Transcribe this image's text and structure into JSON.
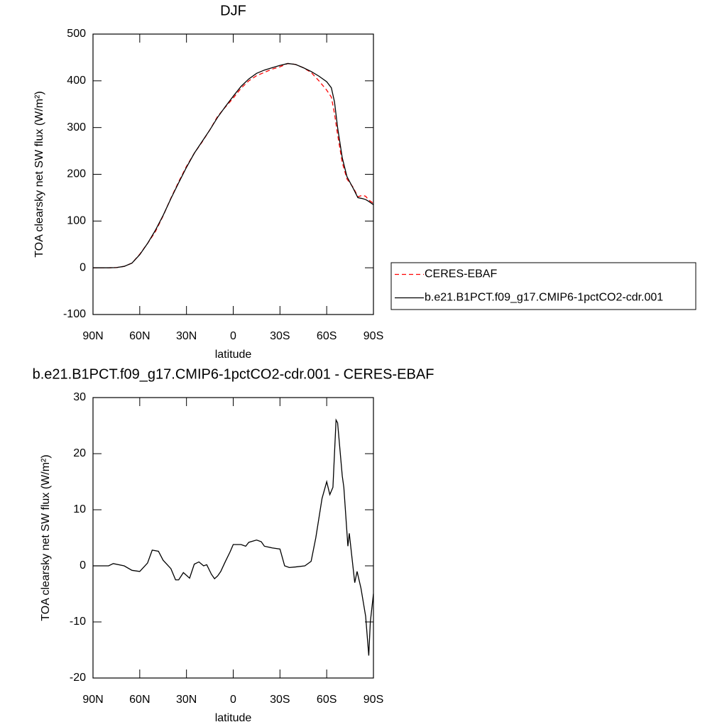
{
  "chart_data": [
    {
      "type": "line",
      "title": "DJF",
      "x_label": "latitude",
      "y_label": "TOA clearsky net SW flux (W/m²)",
      "x": [
        90,
        80,
        75,
        70,
        65,
        60,
        55,
        50,
        45,
        40,
        35,
        30,
        25,
        20,
        15,
        10,
        5,
        0,
        -5,
        -10,
        -15,
        -20,
        -25,
        -30,
        -35,
        -40,
        -45,
        -50,
        -55,
        -60,
        -63,
        -65,
        -67,
        -70,
        -73,
        -77,
        -80,
        -83,
        -85,
        -87,
        -90
      ],
      "series": [
        {
          "name": "CERES-EBAF",
          "color": "#ff0000",
          "style": "dashed",
          "values": [
            0,
            0,
            0.5,
            3,
            10,
            29,
            52,
            77,
            111,
            149,
            184,
            217,
            245,
            269,
            295,
            324,
            344,
            363,
            384,
            400,
            411,
            418,
            425,
            430,
            437,
            435,
            428,
            418,
            400,
            380,
            365,
            330,
            285,
            225,
            190,
            172,
            152,
            155,
            153,
            145,
            138
          ]
        },
        {
          "name": "b.e21.B1PCT.f09_g17.CMIP6-1pctCO2-cdr.001",
          "color": "#000000",
          "style": "solid",
          "values": [
            0,
            0,
            0.5,
            3,
            10,
            28,
            52,
            80,
            112,
            148,
            182,
            215,
            245,
            270,
            295,
            322,
            345,
            367,
            388,
            404,
            416,
            423,
            428,
            433,
            437,
            435,
            428,
            420,
            410,
            398,
            385,
            355,
            300,
            235,
            195,
            170,
            150,
            148,
            146,
            142,
            135
          ]
        }
      ],
      "xlim": [
        90,
        -90
      ],
      "ylim": [
        -100,
        500
      ],
      "xticks": [
        {
          "value": 90,
          "label": "90N"
        },
        {
          "value": 60,
          "label": "60N"
        },
        {
          "value": 30,
          "label": "30N"
        },
        0,
        {
          "value": -30,
          "label": "30S"
        },
        {
          "value": -60,
          "label": "60S"
        },
        {
          "value": -90,
          "label": "90S"
        }
      ],
      "yticks": [
        -100,
        0,
        100,
        200,
        300,
        400,
        500
      ],
      "legend": "right"
    },
    {
      "type": "line",
      "title": "b.e21.B1PCT.f09_g17.CMIP6-1pctCO2-cdr.001 - CERES-EBAF",
      "x_label": "latitude",
      "y_label": "TOA clearsky net SW flux (W/m²)",
      "x": [
        90,
        80,
        77,
        70,
        65,
        60,
        55,
        52,
        48,
        45,
        40,
        37,
        35,
        32,
        28,
        25,
        22,
        19,
        17,
        14,
        12,
        10,
        8,
        5,
        2,
        0,
        -5,
        -8,
        -10,
        -15,
        -18,
        -20,
        -25,
        -30,
        -33,
        -36,
        -40,
        -46,
        -50,
        -53,
        -57,
        -60,
        -62,
        -64,
        -66,
        -67,
        -70,
        -71,
        -73.6,
        -74.5,
        -76,
        -78,
        -79.5,
        -82,
        -85,
        -87,
        -88,
        -90
      ],
      "values": [
        0,
        0,
        0.4,
        0,
        -0.8,
        -1,
        0.5,
        2.8,
        2.6,
        1,
        -0.5,
        -2.5,
        -2.5,
        -1.2,
        -2.2,
        0.3,
        0.7,
        0,
        0.2,
        -1.5,
        -2.3,
        -1.8,
        -1,
        0.8,
        2.5,
        3.8,
        3.8,
        3.5,
        4.2,
        4.6,
        4.3,
        3.5,
        3.2,
        3,
        0,
        -0.3,
        -0.2,
        0,
        0.8,
        5,
        12,
        15,
        12.7,
        14,
        26,
        25.5,
        16,
        14,
        3.5,
        5.8,
        2,
        -3,
        -1,
        -4,
        -9,
        -16,
        -10,
        -5
      ],
      "color": "#000000",
      "xlim": [
        90,
        -90
      ],
      "ylim": [
        -20,
        30
      ],
      "xticks": [
        {
          "value": 90,
          "label": "90N"
        },
        {
          "value": 60,
          "label": "60N"
        },
        {
          "value": 30,
          "label": "30N"
        },
        0,
        {
          "value": -30,
          "label": "30S"
        },
        {
          "value": -60,
          "label": "60S"
        },
        {
          "value": -90,
          "label": "90S"
        }
      ],
      "yticks": [
        -20,
        -10,
        0,
        10,
        20,
        30
      ]
    }
  ]
}
